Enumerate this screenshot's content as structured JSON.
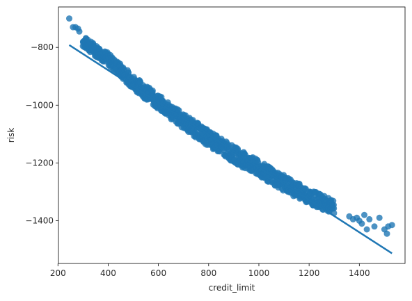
{
  "chart_data": {
    "type": "scatter",
    "title": "",
    "xlabel": "credit_limit",
    "ylabel": "risk",
    "xlim": [
      202,
      1582
    ],
    "ylim": [
      -1548,
      -660
    ],
    "xticks": [
      200,
      400,
      600,
      800,
      1000,
      1200,
      1400
    ],
    "yticks": [
      -1400,
      -1200,
      -1000,
      -800
    ],
    "xtick_labels": [
      "200",
      "400",
      "600",
      "800",
      "1000",
      "1200",
      "1400"
    ],
    "ytick_labels": [
      "−1400",
      "−1200",
      "−1000",
      "−800"
    ],
    "grid": false,
    "legend": "none",
    "colors": {
      "points": "#1f77b4",
      "line": "#1f77b4",
      "axes": "#000000"
    },
    "regression_line": {
      "x": [
        245,
        1530
      ],
      "y": [
        -792,
        -1513
      ]
    },
    "points_band": {
      "description_x": [
        300,
        400,
        500,
        600,
        700,
        800,
        900,
        1000,
        1100,
        1200,
        1300
      ],
      "center_y": [
        -780,
        -840,
        -920,
        -990,
        -1055,
        -1115,
        -1170,
        -1220,
        -1270,
        -1315,
        -1355
      ],
      "half_width_y": [
        20,
        22,
        24,
        26,
        27,
        28,
        28,
        28,
        28,
        26,
        24
      ]
    },
    "outlier_points": {
      "x": [
        245,
        260,
        270,
        280,
        285,
        318,
        325,
        345,
        355,
        365,
        1360,
        1375,
        1390,
        1400,
        1410,
        1420,
        1430,
        1440,
        1460,
        1480,
        1500,
        1510,
        1515,
        1530
      ],
      "y": [
        -700,
        -730,
        -730,
        -735,
        -745,
        -773,
        -790,
        -800,
        -815,
        -805,
        -1385,
        -1395,
        -1390,
        -1400,
        -1410,
        -1380,
        -1430,
        -1395,
        -1420,
        -1390,
        -1430,
        -1445,
        -1420,
        -1415
      ]
    }
  }
}
